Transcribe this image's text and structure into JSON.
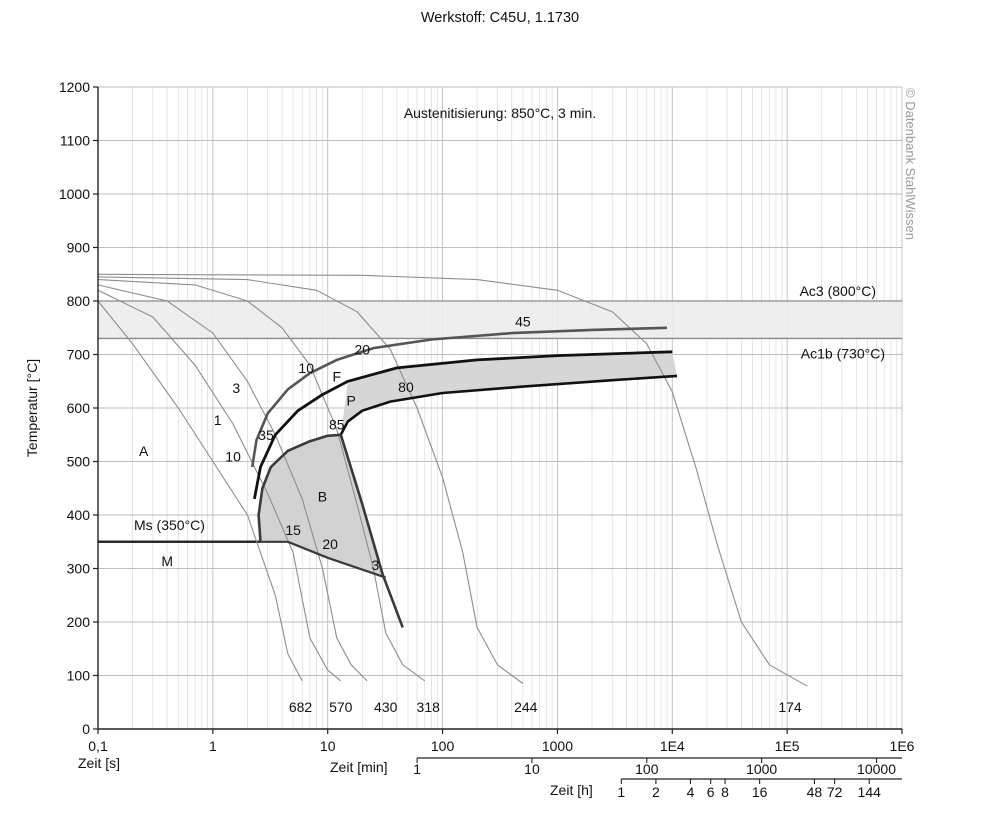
{
  "title": "Werkstoff: C45U, 1.1730",
  "annotation": "Austenitisierung: 850°C, 3 min.",
  "watermark": "© Datenbank StahlWissen",
  "chart_data": {
    "type": "line",
    "x_scale": "log",
    "xlim": [
      0.1,
      1000000
    ],
    "ylim": [
      0,
      1200
    ],
    "grid": true,
    "ylabel": "Temperatur [°C]",
    "xlabel": "Zeit [s]",
    "y_ticks": [
      "0",
      "100",
      "200",
      "300",
      "400",
      "500",
      "600",
      "700",
      "800",
      "900",
      "1000",
      "1100",
      "1200"
    ],
    "x_ticks": [
      "0,1",
      "1",
      "10",
      "100",
      "1000",
      "1E4",
      "1E5",
      "1E6"
    ],
    "minute_axis": {
      "label": "Zeit [min]",
      "ticks": [
        "1",
        "10",
        "100",
        "1000",
        "10000"
      ]
    },
    "hour_axis": {
      "label": "Zeit [h]",
      "ticks": [
        "1",
        "2",
        "4",
        "6",
        "8",
        "16",
        "48",
        "72",
        "144"
      ]
    },
    "reference_lines": [
      {
        "label": "Ac3 (800°C)",
        "y": 800
      },
      {
        "label": "Ac1b (730°C)",
        "y": 730
      },
      {
        "label": "Ms (350°C)",
        "y": 350
      }
    ],
    "region_labels": [
      "A",
      "F",
      "P",
      "B",
      "M"
    ],
    "hardness_labels": [
      "682",
      "570",
      "430",
      "318",
      "244",
      "174"
    ],
    "phase_percent_labels": [
      "1",
      "3",
      "10",
      "20",
      "45",
      "10",
      "35",
      "85",
      "80",
      "15",
      "20",
      "3"
    ],
    "cooling_curves": [
      {
        "hardness": "682",
        "points": [
          [
            0.1,
            800
          ],
          [
            0.2,
            720
          ],
          [
            0.5,
            600
          ],
          [
            1,
            500
          ],
          [
            2,
            400
          ],
          [
            3.5,
            250
          ],
          [
            4.5,
            140
          ],
          [
            6,
            90
          ]
        ]
      },
      {
        "hardness": "570",
        "points": [
          [
            0.1,
            820
          ],
          [
            0.3,
            770
          ],
          [
            0.7,
            680
          ],
          [
            1.5,
            570
          ],
          [
            3,
            440
          ],
          [
            5,
            330
          ],
          [
            7,
            170
          ],
          [
            10,
            110
          ],
          [
            13,
            90
          ]
        ]
      },
      {
        "hardness": "430",
        "points": [
          [
            0.1,
            830
          ],
          [
            0.4,
            800
          ],
          [
            1,
            740
          ],
          [
            2,
            650
          ],
          [
            3.5,
            550
          ],
          [
            6,
            430
          ],
          [
            9,
            300
          ],
          [
            12,
            170
          ],
          [
            16,
            120
          ],
          [
            22,
            90
          ]
        ]
      },
      {
        "hardness": "318",
        "points": [
          [
            0.1,
            840
          ],
          [
            0.7,
            830
          ],
          [
            2,
            800
          ],
          [
            4,
            750
          ],
          [
            7,
            680
          ],
          [
            12,
            560
          ],
          [
            18,
            420
          ],
          [
            25,
            300
          ],
          [
            32,
            180
          ],
          [
            45,
            120
          ],
          [
            70,
            90
          ]
        ]
      },
      {
        "hardness": "244",
        "points": [
          [
            0.1,
            845
          ],
          [
            2,
            840
          ],
          [
            8,
            820
          ],
          [
            18,
            780
          ],
          [
            35,
            710
          ],
          [
            60,
            600
          ],
          [
            100,
            470
          ],
          [
            150,
            330
          ],
          [
            200,
            190
          ],
          [
            300,
            120
          ],
          [
            500,
            85
          ]
        ]
      },
      {
        "hardness": "174",
        "points": [
          [
            0.1,
            850
          ],
          [
            20,
            848
          ],
          [
            200,
            840
          ],
          [
            1000,
            820
          ],
          [
            3000,
            780
          ],
          [
            6000,
            720
          ],
          [
            10000,
            630
          ],
          [
            16000,
            490
          ],
          [
            25000,
            340
          ],
          [
            40000,
            200
          ],
          [
            70000,
            120
          ],
          [
            150000,
            80
          ]
        ]
      }
    ],
    "transformation_lines": [
      {
        "name": "ferrite-start",
        "points": [
          [
            2.2,
            490
          ],
          [
            2.4,
            540
          ],
          [
            3,
            590
          ],
          [
            4.5,
            635
          ],
          [
            7,
            665
          ],
          [
            12,
            690
          ],
          [
            25,
            712
          ],
          [
            80,
            728
          ],
          [
            400,
            740
          ],
          [
            2000,
            746
          ],
          [
            9000,
            750
          ]
        ]
      },
      {
        "name": "pearlite-start",
        "points": [
          [
            2.3,
            430
          ],
          [
            2.6,
            490
          ],
          [
            3.5,
            550
          ],
          [
            5.5,
            595
          ],
          [
            9,
            625
          ],
          [
            15,
            650
          ],
          [
            40,
            675
          ],
          [
            200,
            690
          ],
          [
            1000,
            698
          ],
          [
            10000,
            705
          ]
        ]
      },
      {
        "name": "pearlite-end",
        "points": [
          [
            13,
            550
          ],
          [
            15,
            575
          ],
          [
            20,
            595
          ],
          [
            35,
            612
          ],
          [
            100,
            628
          ],
          [
            500,
            640
          ],
          [
            3000,
            652
          ],
          [
            11000,
            660
          ]
        ]
      },
      {
        "name": "bainite-start",
        "points": [
          [
            2.6,
            350
          ],
          [
            2.5,
            400
          ],
          [
            2.7,
            450
          ],
          [
            3.2,
            490
          ],
          [
            4.5,
            520
          ],
          [
            7,
            538
          ],
          [
            10,
            548
          ],
          [
            13,
            550
          ]
        ]
      },
      {
        "name": "bainite-end",
        "points": [
          [
            13,
            550
          ],
          [
            20,
            420
          ],
          [
            30,
            290
          ],
          [
            45,
            190
          ]
        ]
      },
      {
        "name": "martensite-transformation",
        "points": [
          [
            2.6,
            350
          ],
          [
            4.5,
            350
          ],
          [
            10,
            320
          ],
          [
            32,
            283
          ]
        ]
      }
    ]
  }
}
